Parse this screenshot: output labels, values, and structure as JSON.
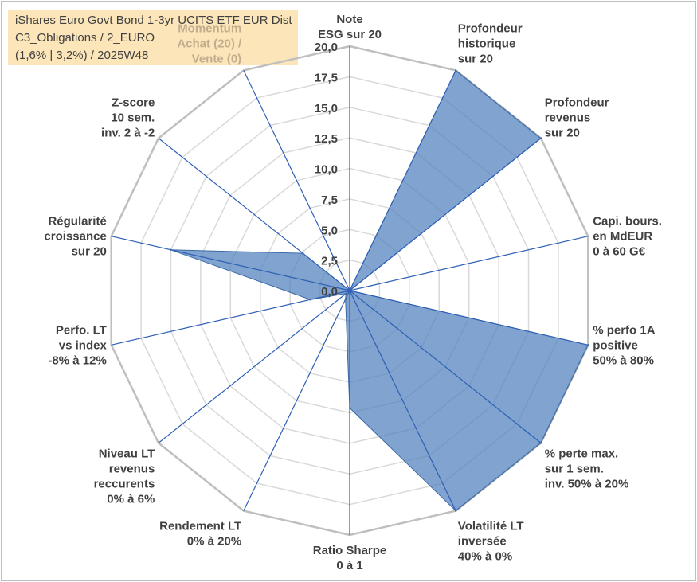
{
  "title": {
    "line1": "iShares Euro Govt Bond 1-3yr UCITS ETF EUR Dist",
    "line2": "C3_Obligations / 2_EURO",
    "line3": "(1,6% | 3,2%) / 2025W48"
  },
  "colors": {
    "fill": "#4f81bd",
    "fill_opacity": "0.72",
    "axis": "#2e5fb5",
    "grid": "#d9d9d9",
    "outer_ring": "#bfbfbf",
    "label": "#404040",
    "faded_label": "#c0ad8e",
    "title_bg": "#fbe5b9"
  },
  "chart_data": {
    "type": "radar",
    "rmin": 0,
    "rmax": 20,
    "step": 2.5,
    "tick_labels": [
      "0,0",
      "2,5",
      "5,0",
      "7,5",
      "10,0",
      "12,5",
      "15,0",
      "17,5",
      "20,0"
    ],
    "axes": [
      {
        "label": [
          "Note",
          "ESG sur 20"
        ],
        "value": 0,
        "faded": false
      },
      {
        "label": [
          "Profondeur",
          "historique",
          "sur 20"
        ],
        "value": 20,
        "faded": false
      },
      {
        "label": [
          "Profondeur",
          "revenus",
          "sur 20"
        ],
        "value": 20,
        "faded": false
      },
      {
        "label": [
          "Capi. bours.",
          "en MdEUR",
          "0 à 60 G€"
        ],
        "value": 0,
        "faded": false
      },
      {
        "label": [
          "% perfo 1A",
          "positive",
          "50% à 80%"
        ],
        "value": 20,
        "faded": false
      },
      {
        "label": [
          "% perte max.",
          "sur 1 sem.",
          "inv. 50% à 20%"
        ],
        "value": 20,
        "faded": false
      },
      {
        "label": [
          "Volatilité LT",
          "inversée",
          "40% à 0%"
        ],
        "value": 20,
        "faded": false
      },
      {
        "label": [
          "Ratio Sharpe",
          "0 à 1"
        ],
        "value": 9.6,
        "faded": false
      },
      {
        "label": [
          "Rendement LT",
          "0% à 20%"
        ],
        "value": 0.8,
        "faded": false
      },
      {
        "label": [
          "Niveau LT",
          "revenus",
          "reccurents",
          "0% à 6%"
        ],
        "value": 0.4,
        "faded": false
      },
      {
        "label": [
          "Perfo. LT",
          "vs index",
          "-8% à 12%"
        ],
        "value": 3.3,
        "faded": false
      },
      {
        "label": [
          "Régularité",
          "croissance",
          "sur 20"
        ],
        "value": 15,
        "faded": false
      },
      {
        "label": [
          "Z-score",
          "10 sem.",
          "inv. 2 à -2"
        ],
        "value": 4.9,
        "faded": false
      },
      {
        "label": [
          "Momentum",
          "Achat (20) /",
          "Vente (0)"
        ],
        "value": 0,
        "faded": true
      }
    ]
  }
}
